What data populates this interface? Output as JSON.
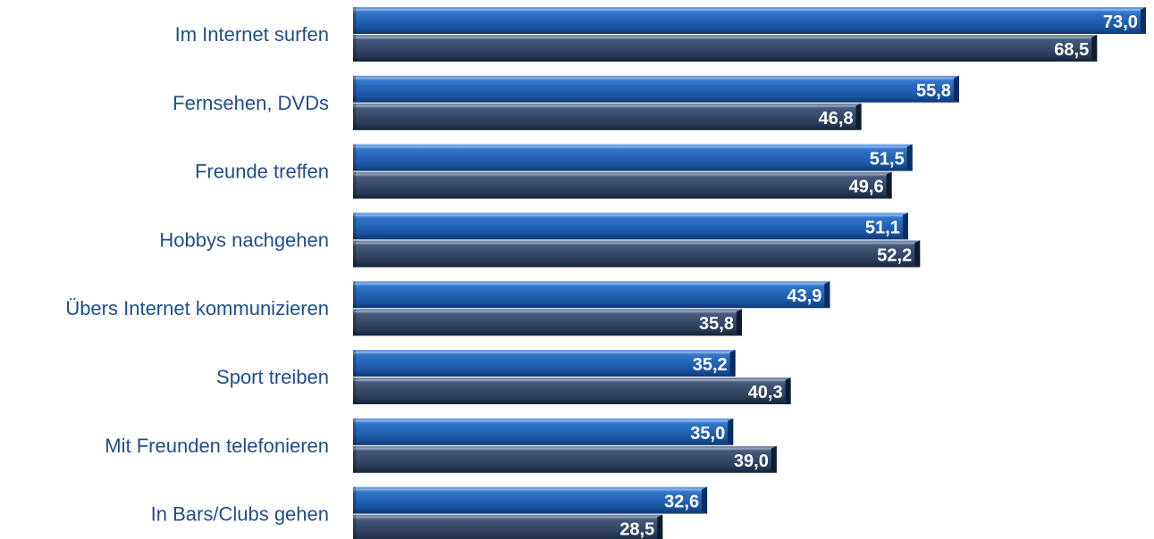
{
  "chart_data": {
    "type": "bar",
    "orientation": "horizontal",
    "categories": [
      "Im Internet surfen",
      "Fernsehen, DVDs",
      "Freunde treffen",
      "Hobbys nachgehen",
      "Übers Internet kommunizieren",
      "Sport treiben",
      "Mit Freunden telefonieren",
      "In Bars/Clubs gehen"
    ],
    "series": [
      {
        "values": [
          73.0,
          55.8,
          51.5,
          51.1,
          43.9,
          35.2,
          35.0,
          32.6
        ],
        "labels": [
          "73,0",
          "55,8",
          "51,5",
          "51,1",
          "43,9",
          "35,2",
          "35,0",
          "32,6"
        ],
        "color": "#1f5fb0"
      },
      {
        "values": [
          68.5,
          46.8,
          49.6,
          52.2,
          35.8,
          40.3,
          39.0,
          28.5
        ],
        "labels": [
          "68,5",
          "46,8",
          "49,6",
          "52,2",
          "35,8",
          "40,3",
          "39,0",
          "28,5"
        ],
        "color": "#2b3f5e"
      }
    ],
    "xlim": [
      0,
      73.5
    ],
    "grid": false,
    "legend": "none",
    "axis_visible": false
  }
}
